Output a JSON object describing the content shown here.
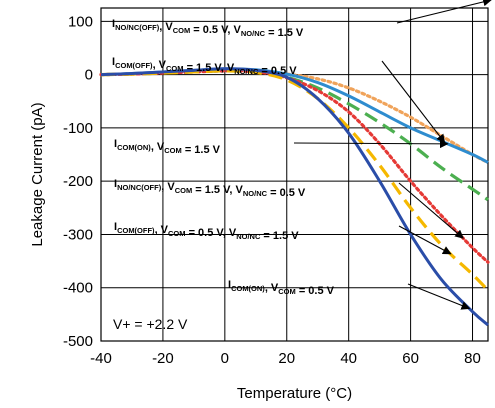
{
  "chart_data": {
    "type": "line",
    "title": "",
    "xlabel": "Temperature (°C)",
    "ylabel": "Leakage Current (pA)",
    "xlim": [
      -40,
      85
    ],
    "ylim": [
      -500,
      125
    ],
    "xticks": [
      -40,
      -20,
      0,
      20,
      40,
      60,
      80
    ],
    "yticks": [
      100,
      0,
      -100,
      -200,
      -300,
      -400,
      -500
    ],
    "grid": true,
    "condition_label": "V+ = +2.2 V",
    "x": [
      -40,
      -30,
      -20,
      -10,
      0,
      10,
      20,
      30,
      40,
      50,
      60,
      70,
      80,
      85
    ],
    "series": [
      {
        "name": "I_NO/NC(OFF), V_COM = 0.5 V, V_NO/NC = 1.5 V",
        "color": "#f0a35a",
        "style": "dotted",
        "values": [
          0,
          1,
          3,
          5,
          7,
          6,
          1,
          -8,
          -25,
          -50,
          -80,
          -115,
          -150,
          -165
        ]
      },
      {
        "name": "I_COM(OFF), V_COM = 1.5 V, V_NO/NC = 0.5 V",
        "color": "#4caf50",
        "style": "dashed",
        "values": [
          0,
          1,
          3,
          5,
          7,
          5,
          -5,
          -25,
          -55,
          -90,
          -130,
          -175,
          -215,
          -235
        ]
      },
      {
        "name": "I_COM(ON), V_COM = 1.5 V",
        "color": "#2e8ccf",
        "style": "solid",
        "values": [
          0,
          2,
          5,
          8,
          11,
          9,
          1,
          -15,
          -40,
          -70,
          -100,
          -125,
          -150,
          -165
        ]
      },
      {
        "name": "I_NO/NC(OFF), V_COM = 1.5 V, V_NO/NC = 0.5 V",
        "color": "#e53935",
        "style": "dotted",
        "values": [
          0,
          1,
          3,
          5,
          7,
          5,
          -6,
          -30,
          -70,
          -130,
          -200,
          -265,
          -325,
          -352
        ]
      },
      {
        "name": "I_COM(OFF), V_COM = 0.5 V, V_NO/NC = 1.5 V",
        "color": "#f5b800",
        "style": "dashed",
        "values": [
          0,
          1,
          3,
          5,
          7,
          4,
          -10,
          -45,
          -100,
          -170,
          -250,
          -320,
          -375,
          -405
        ]
      },
      {
        "name": "I_COM(ON), V_COM = 0.5 V",
        "color": "#2a4da8",
        "style": "solid",
        "values": [
          0,
          2,
          5,
          8,
          11,
          8,
          -5,
          -45,
          -110,
          -200,
          -300,
          -385,
          -445,
          -470
        ]
      }
    ],
    "annotations": [
      {
        "main": "I",
        "sub": "NO/NC(OFF)",
        "rest1": ", V",
        "sub2": "COM",
        "rest2": " = 0.5 V, V",
        "sub3": "NO/NC",
        "rest3": " = 1.5 V"
      },
      {
        "main": "I",
        "sub": "COM(OFF)",
        "rest1": ", V",
        "sub2": "COM",
        "rest2": " = 1.5 V, V",
        "sub3": "NO/NC",
        "rest3": " = 0.5 V"
      },
      {
        "main": "I",
        "sub": "COM(ON)",
        "rest1": ", V",
        "sub2": "COM",
        "rest2": " = 1.5 V",
        "sub3": "",
        "rest3": ""
      },
      {
        "main": "I",
        "sub": "NO/NC(OFF)",
        "rest1": ", V",
        "sub2": "COM",
        "rest2": " = 1.5 V, V",
        "sub3": "NO/NC",
        "rest3": " = 0.5 V"
      },
      {
        "main": "I",
        "sub": "COM(OFF)",
        "rest1": ", V",
        "sub2": "COM",
        "rest2": " = 0.5 V, V",
        "sub3": "NO/NC",
        "rest3": " = 1.5 V"
      },
      {
        "main": "I",
        "sub": "COM(ON)",
        "rest1": ", V",
        "sub2": "COM",
        "rest2": " = 0.5 V",
        "sub3": "",
        "rest3": ""
      }
    ]
  }
}
